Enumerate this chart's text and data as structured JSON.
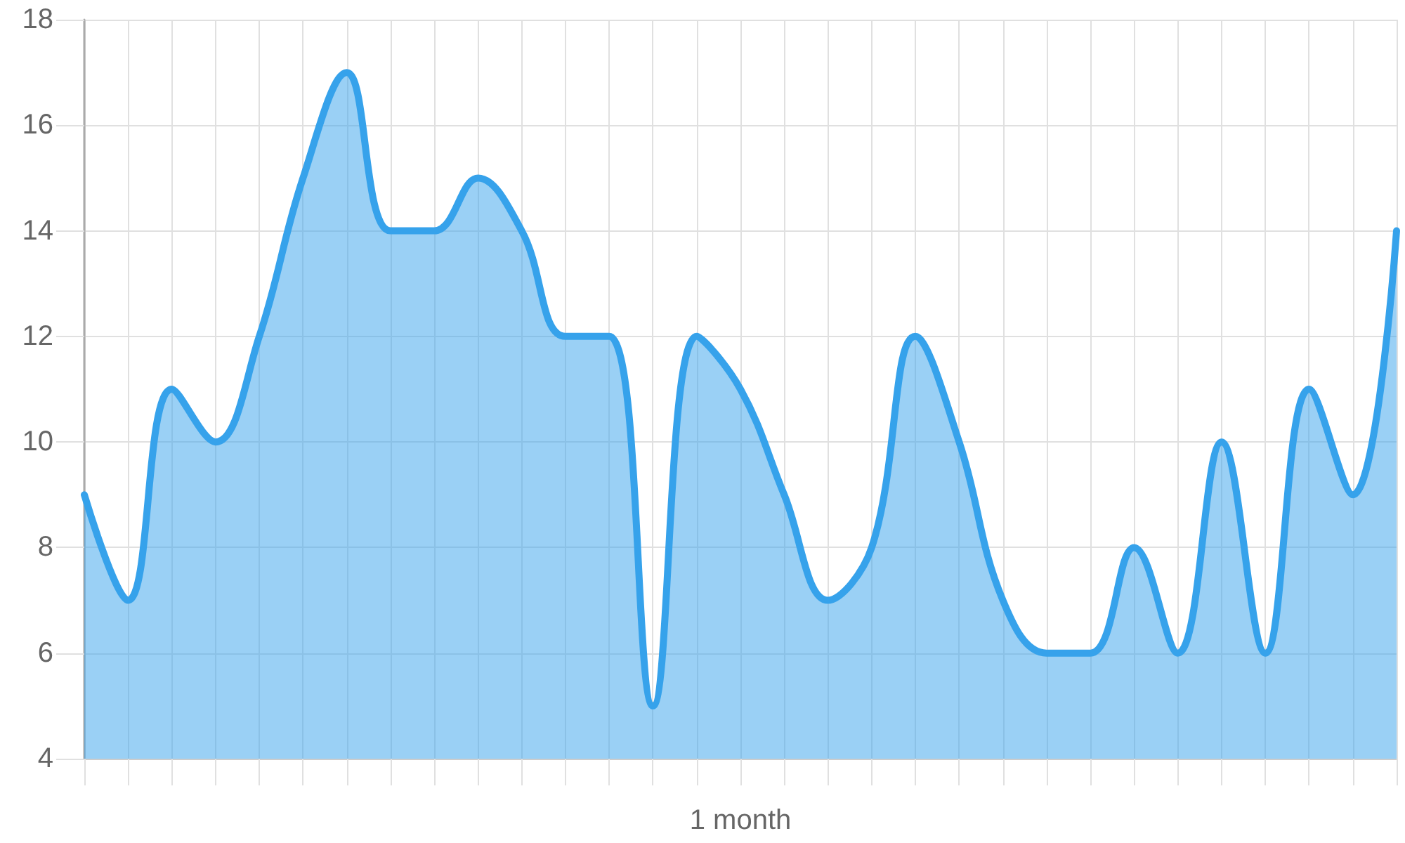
{
  "chart_data": {
    "type": "area",
    "xlabel": "1 month",
    "categories": [
      null,
      null,
      null,
      null,
      null,
      null,
      null,
      null,
      null,
      null,
      null,
      null,
      null,
      null,
      null,
      null,
      null,
      null,
      null,
      null,
      null,
      null,
      null,
      null,
      null,
      null,
      null,
      null,
      null,
      null,
      null
    ],
    "series": [
      {
        "color": "#36a2eb",
        "values": [
          9,
          7,
          11,
          10,
          12,
          15,
          17,
          14,
          14,
          15,
          14,
          12,
          12,
          5,
          12,
          11,
          9,
          7,
          8,
          12,
          10,
          7,
          6,
          6,
          8,
          6,
          10,
          6,
          11,
          9,
          14
        ]
      }
    ],
    "ylim": [
      4,
      18
    ],
    "yticks": [
      4,
      6,
      8,
      10,
      12,
      14,
      16,
      18
    ],
    "grid": true,
    "marker": "none"
  }
}
